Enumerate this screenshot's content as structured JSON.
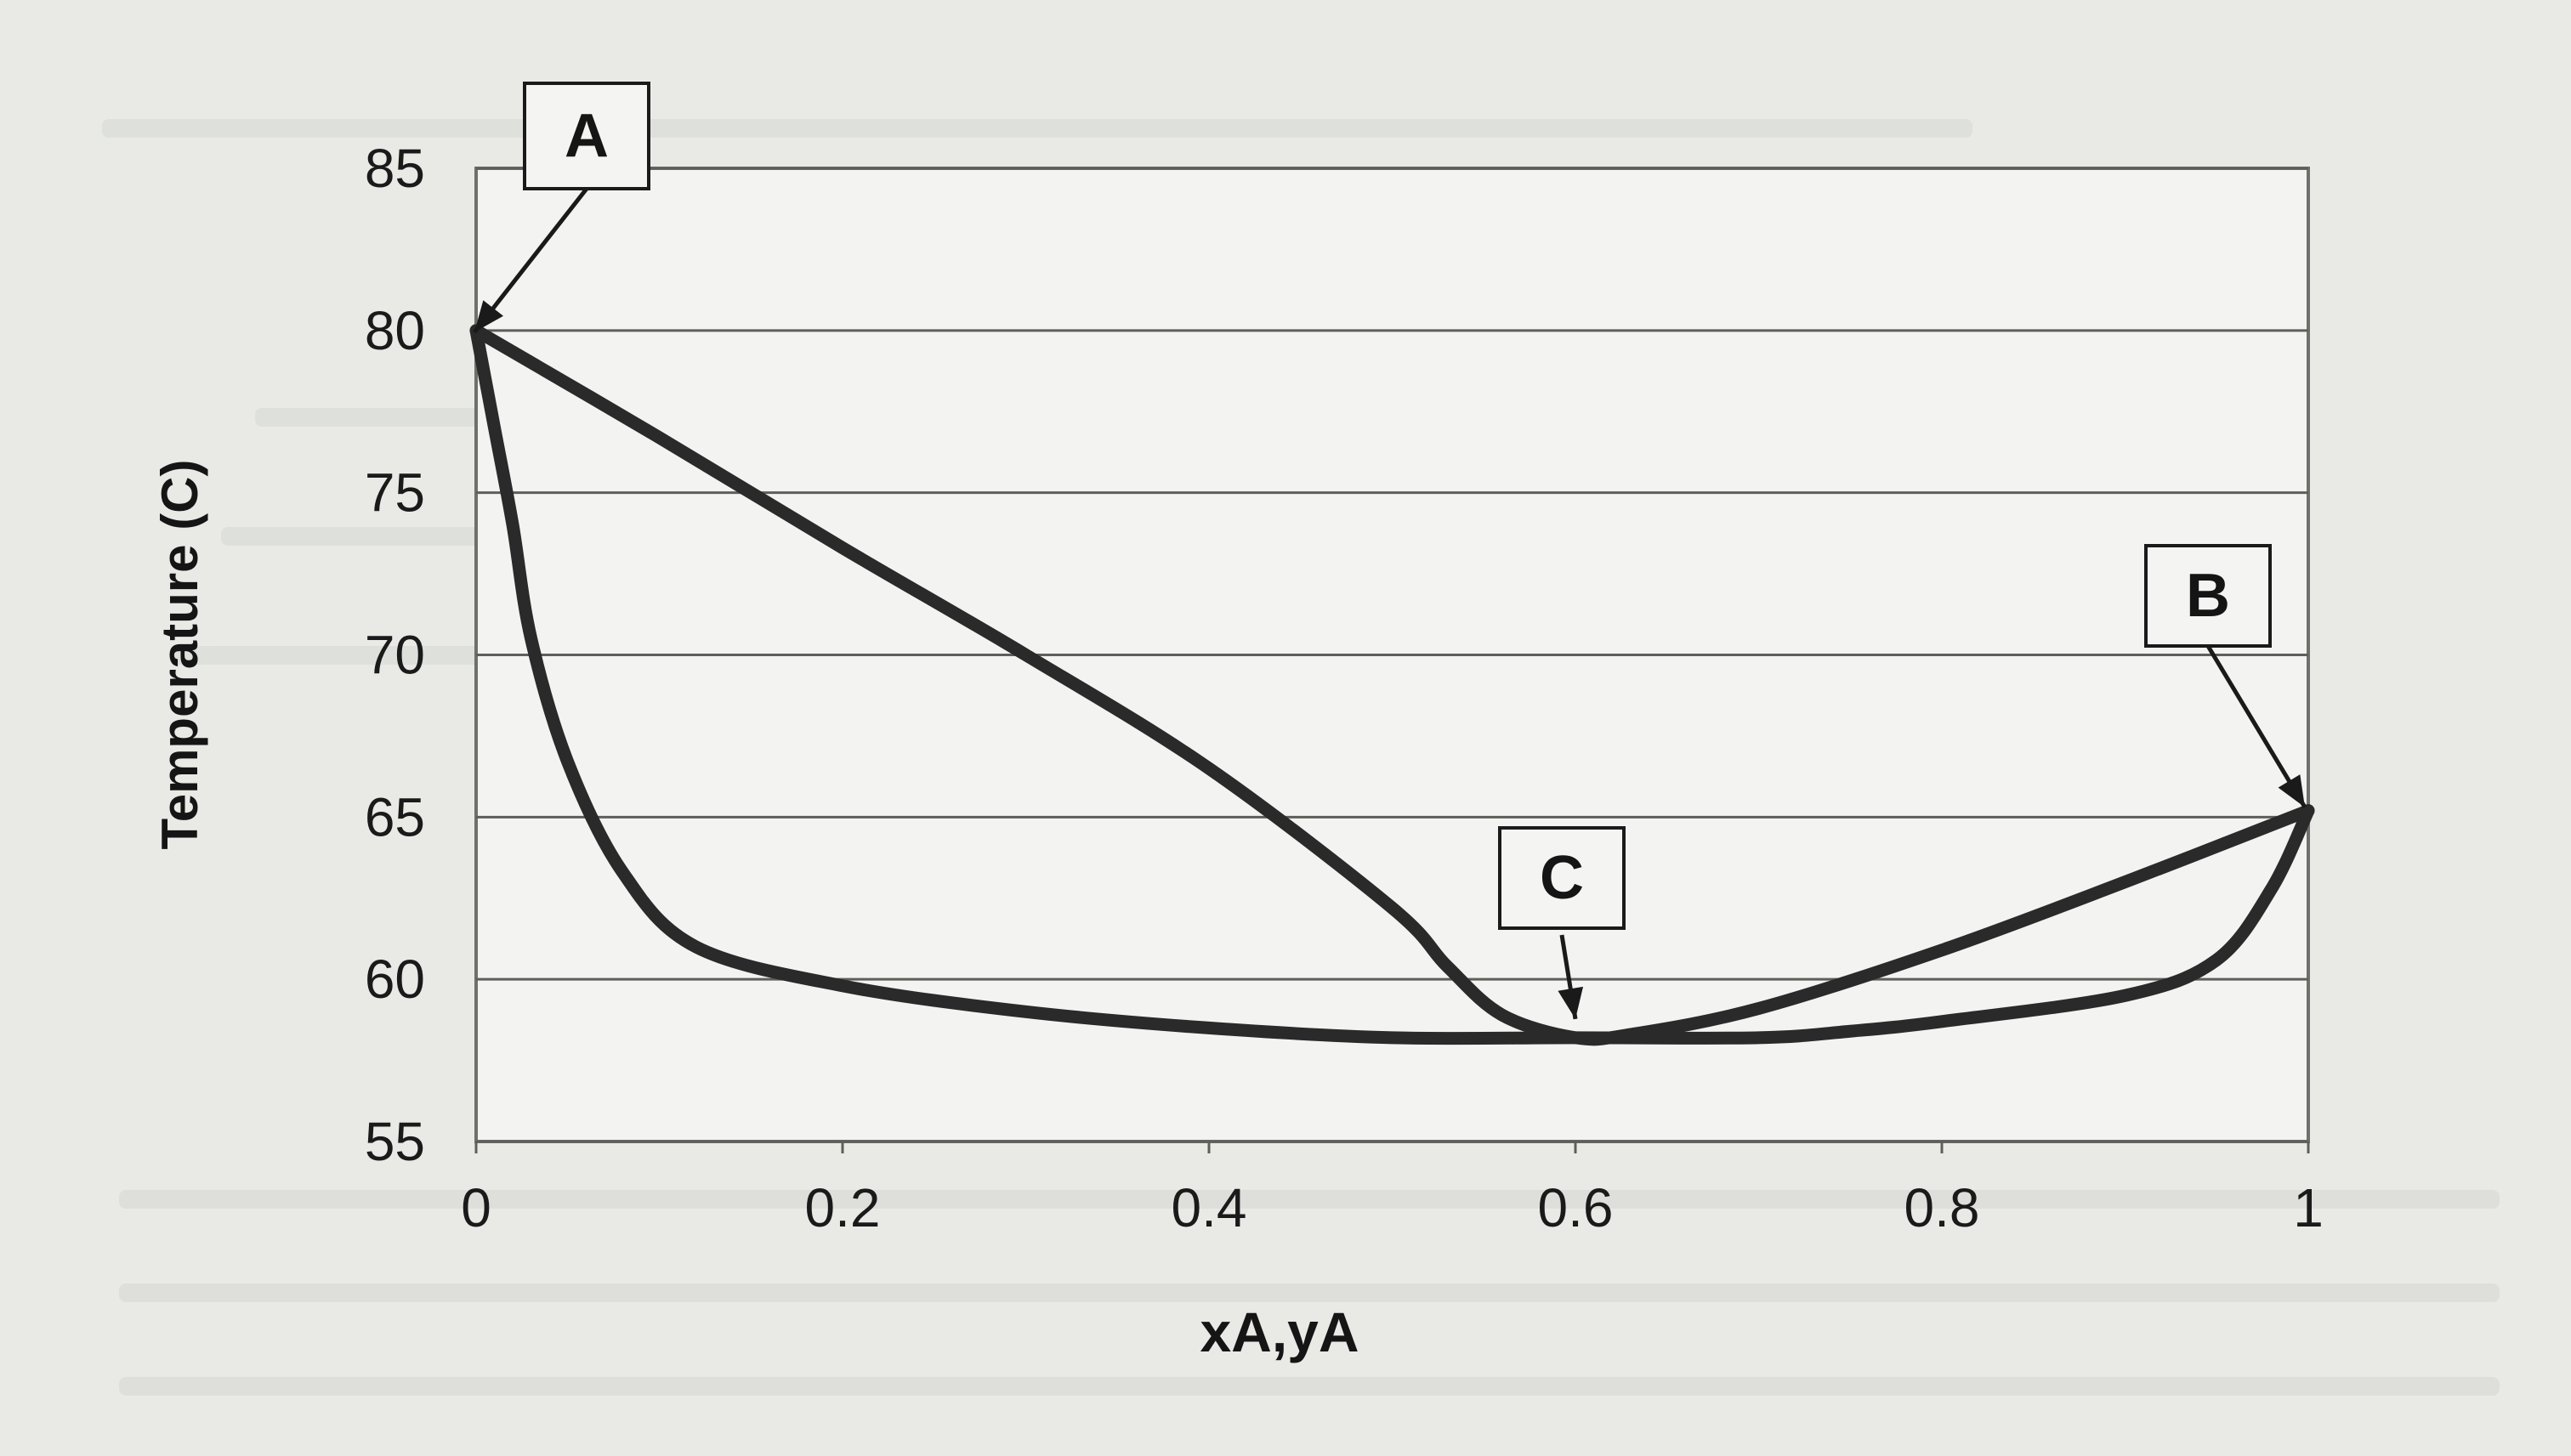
{
  "chart_data": {
    "type": "line",
    "title": "",
    "xlabel": "xA,yA",
    "ylabel": "Temperature (C)",
    "xlim": [
      0,
      1
    ],
    "ylim": [
      55,
      85
    ],
    "x_ticks": [
      "0",
      "0.2",
      "0.4",
      "0.6",
      "0.8",
      "1"
    ],
    "y_ticks": [
      "55",
      "60",
      "65",
      "70",
      "75",
      "80",
      "85"
    ],
    "grid": "horizontal",
    "legend": "none",
    "series": [
      {
        "color": "#2a2a2a",
        "points": [
          [
            0,
            80
          ],
          [
            0.1,
            76.7
          ],
          [
            0.2,
            73.3
          ],
          [
            0.3,
            70
          ],
          [
            0.4,
            66.5
          ],
          [
            0.5,
            62.2
          ],
          [
            0.53,
            60.4
          ],
          [
            0.56,
            58.9
          ],
          [
            0.6,
            58.2
          ],
          [
            0.63,
            58.3
          ],
          [
            0.7,
            59.1
          ],
          [
            0.8,
            60.9
          ],
          [
            0.9,
            63
          ],
          [
            1,
            65.2
          ]
        ]
      },
      {
        "color": "#2a2a2a",
        "points": [
          [
            0,
            80
          ],
          [
            0.01,
            77
          ],
          [
            0.02,
            74
          ],
          [
            0.03,
            70.5
          ],
          [
            0.05,
            66.7
          ],
          [
            0.08,
            63.3
          ],
          [
            0.12,
            61
          ],
          [
            0.2,
            59.8
          ],
          [
            0.3,
            59
          ],
          [
            0.4,
            58.5
          ],
          [
            0.5,
            58.2
          ],
          [
            0.6,
            58.2
          ],
          [
            0.7,
            58.2
          ],
          [
            0.75,
            58.4
          ],
          [
            0.8,
            58.7
          ],
          [
            0.9,
            59.5
          ],
          [
            0.95,
            60.6
          ],
          [
            0.98,
            62.8
          ],
          [
            1,
            65.2
          ]
        ]
      }
    ],
    "annotations": [
      {
        "label": "A",
        "x": 0,
        "y": 80
      },
      {
        "label": "B",
        "x": 1,
        "y": 65.2
      },
      {
        "label": "C",
        "x": 0.6,
        "y": 58.2
      }
    ]
  }
}
